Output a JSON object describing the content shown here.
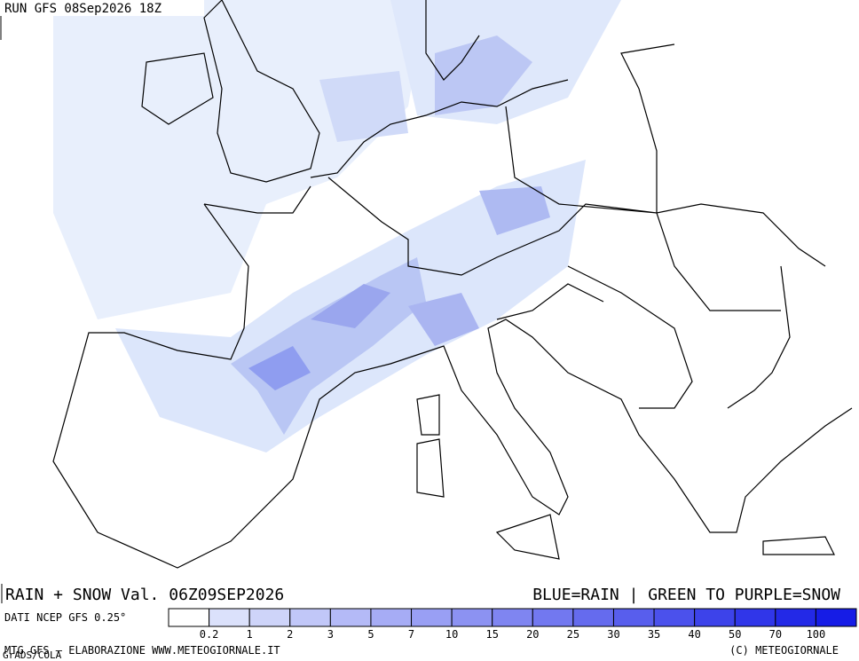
{
  "header": {
    "run": "RUN GFS 08Sep2026 18Z"
  },
  "title": {
    "left": "RAIN + SNOW Val. 06Z09SEP2026",
    "right": "BLUE=RAIN | GREEN TO PURPLE=SNOW"
  },
  "legend": {
    "label": "DATI NCEP GFS 0.25°",
    "ticks": [
      0.2,
      1,
      2,
      3,
      5,
      7,
      10,
      15,
      20,
      25,
      30,
      35,
      40,
      50,
      70,
      100
    ]
  },
  "footer": {
    "left": "MTG GFS – ELABORAZIONE WWW.METEOGIORNALE.IT",
    "credit": "GrADS/COLA",
    "right": "(C) METEOGIORNALE"
  }
}
